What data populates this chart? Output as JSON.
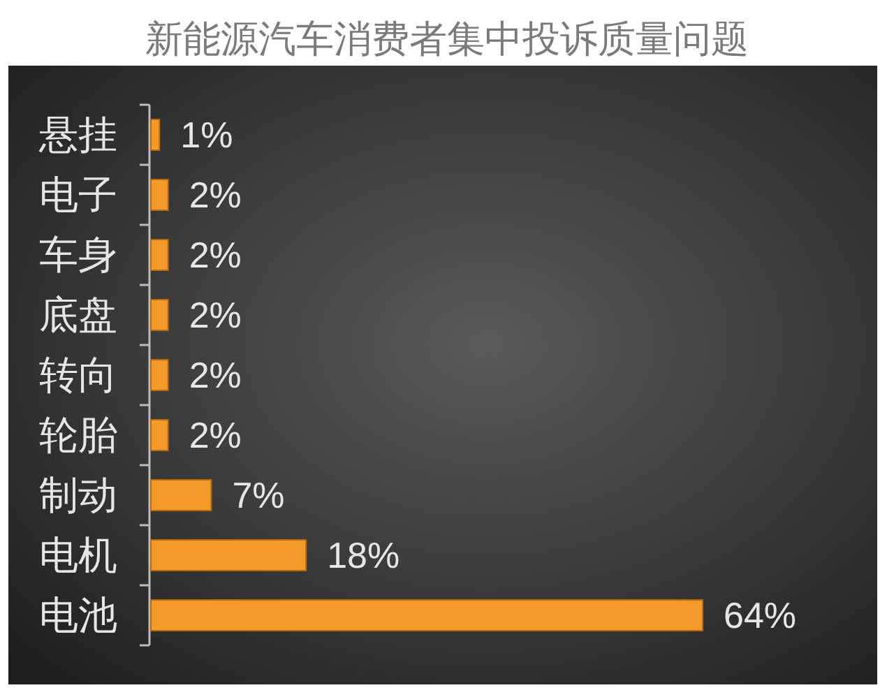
{
  "chart_data": {
    "type": "bar",
    "orientation": "horizontal",
    "title": "新能源汽车消费者集中投诉质量问题",
    "categories": [
      "悬挂",
      "电子",
      "车身",
      "底盘",
      "转向",
      "轮胎",
      "制动",
      "电机",
      "电池"
    ],
    "values": [
      1,
      2,
      2,
      2,
      2,
      2,
      7,
      18,
      64
    ],
    "value_labels": [
      "1%",
      "2%",
      "2%",
      "2%",
      "2%",
      "2%",
      "7%",
      "18%",
      "64%"
    ],
    "color": "#f39a2a"
  }
}
